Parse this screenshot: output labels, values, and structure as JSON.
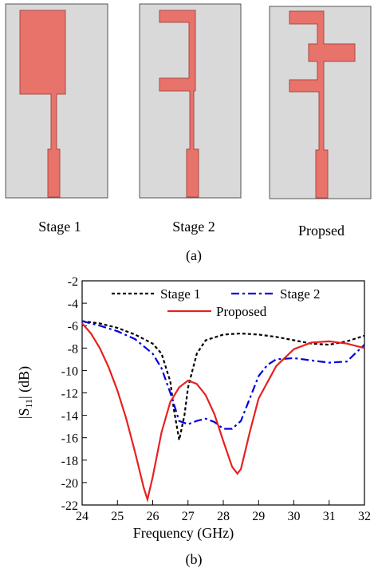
{
  "figure_a": {
    "labels": [
      "Stage 1",
      "Stage 2",
      "Propsed"
    ],
    "caption": "(a)"
  },
  "chart_data": {
    "type": "line",
    "x_label": "Frequency (GHz)",
    "y_label": {
      "prefix": "|S",
      "subscript": "11",
      "suffix": "| (dB)"
    },
    "caption": "(b)",
    "xlim": [
      24,
      32
    ],
    "xticks": [
      24,
      25,
      26,
      27,
      28,
      29,
      30,
      31,
      32
    ],
    "ylim": [
      -22,
      -2
    ],
    "yticks": [
      -22,
      -20,
      -18,
      -16,
      -14,
      -12,
      -10,
      -8,
      -6,
      -4,
      -2
    ],
    "series": [
      {
        "name": "Stage 1",
        "color": "#000000",
        "line_style": "dotted",
        "x": [
          24,
          24.5,
          25,
          25.5,
          26,
          26.25,
          26.5,
          26.6,
          26.75,
          26.9,
          27,
          27.25,
          27.5,
          28,
          28.5,
          29,
          29.5,
          30,
          30.5,
          31,
          31.5,
          32
        ],
        "values": [
          -5.6,
          -5.8,
          -6.2,
          -6.8,
          -7.6,
          -8.5,
          -11,
          -13.5,
          -16.2,
          -14,
          -11.5,
          -8.5,
          -7.3,
          -6.8,
          -6.7,
          -6.8,
          -7,
          -7.3,
          -7.6,
          -7.7,
          -7.4,
          -6.9
        ]
      },
      {
        "name": "Stage 2",
        "color": "#0000dd",
        "line_style": "dashdot",
        "x": [
          24,
          24.5,
          25,
          25.5,
          26,
          26.25,
          26.5,
          26.75,
          27,
          27.25,
          27.5,
          27.75,
          28,
          28.25,
          28.5,
          28.75,
          29,
          29.25,
          29.5,
          30,
          30.5,
          31,
          31.5,
          32
        ],
        "values": [
          -5.6,
          -6,
          -6.5,
          -7.2,
          -8.5,
          -9.8,
          -12,
          -14.5,
          -14.8,
          -14.5,
          -14.3,
          -14.6,
          -15.2,
          -15.2,
          -14.5,
          -12.5,
          -10.5,
          -9.5,
          -9,
          -8.9,
          -9.1,
          -9.3,
          -9.2,
          -7.7
        ]
      },
      {
        "name": "Proposed",
        "color": "#e82020",
        "line_style": "solid",
        "x": [
          24,
          24.25,
          24.5,
          24.75,
          25,
          25.25,
          25.5,
          25.75,
          25.85,
          26,
          26.25,
          26.5,
          26.75,
          27,
          27.25,
          27.5,
          27.75,
          28,
          28.25,
          28.4,
          28.5,
          28.75,
          29,
          29.5,
          30,
          30.5,
          31,
          31.5,
          32
        ],
        "values": [
          -5.8,
          -6.7,
          -8,
          -9.7,
          -11.8,
          -14.3,
          -17.3,
          -20.5,
          -21.5,
          -19.5,
          -15.5,
          -12.8,
          -11.5,
          -10.9,
          -11.2,
          -12.2,
          -13.9,
          -16.3,
          -18.6,
          -19.2,
          -18.8,
          -15.5,
          -12.5,
          -9.6,
          -8.1,
          -7.5,
          -7.4,
          -7.6,
          -8
        ]
      }
    ]
  }
}
